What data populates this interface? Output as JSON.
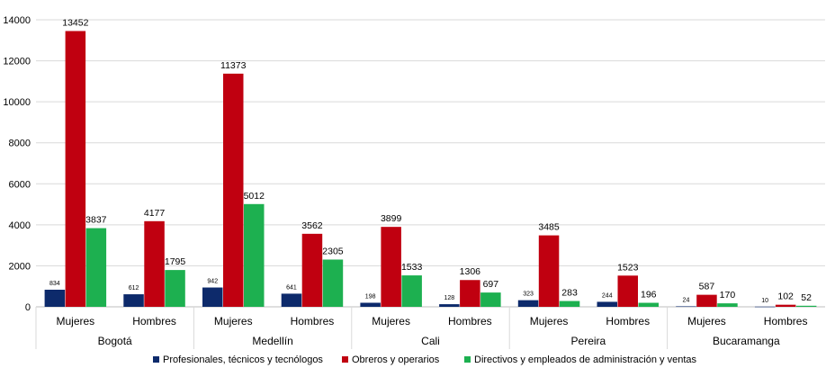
{
  "chart_data": {
    "type": "bar",
    "title": "",
    "xlabel": "",
    "ylabel": "",
    "ylim": [
      0,
      14000
    ],
    "yticks": [
      0,
      2000,
      4000,
      6000,
      8000,
      10000,
      12000,
      14000
    ],
    "grid": true,
    "legend_position": "bottom",
    "cities": [
      "Bogotá",
      "Medellín",
      "Cali",
      "Pereira",
      "Bucaramanga"
    ],
    "subcategories": [
      "Mujeres",
      "Hombres"
    ],
    "categories": [
      "Bogotá Mujeres",
      "Bogotá Hombres",
      "Medellín Mujeres",
      "Medellín Hombres",
      "Cali Mujeres",
      "Cali Hombres",
      "Pereira Mujeres",
      "Pereira Hombres",
      "Bucaramanga Mujeres",
      "Bucaramanga Hombres"
    ],
    "series": [
      {
        "name": "Profesionales, técnicos y tecnólogos",
        "color": "#0d2a6b",
        "values": [
          834,
          612,
          942,
          641,
          198,
          128,
          323,
          244,
          24,
          10
        ]
      },
      {
        "name": "Obreros y operarios",
        "color": "#c00010",
        "values": [
          13452,
          4177,
          11373,
          3562,
          3899,
          1306,
          3485,
          1523,
          587,
          102
        ]
      },
      {
        "name": "Directivos y empleados de administración y ventas",
        "color": "#1db050",
        "values": [
          3837,
          1795,
          5012,
          2305,
          1533,
          697,
          283,
          196,
          170,
          52
        ]
      }
    ]
  }
}
